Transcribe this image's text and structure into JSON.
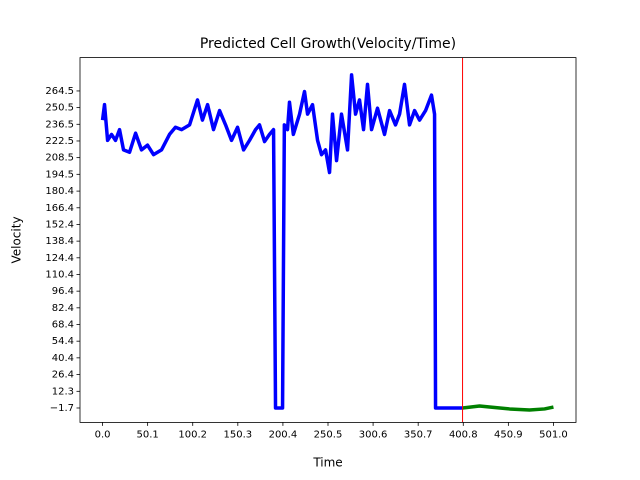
{
  "chart_data": {
    "type": "line",
    "title": "Predicted Cell Growth(Velocity/Time)",
    "xlabel": "Time",
    "ylabel": "Velocity",
    "xlim": [
      -25.05,
      526.05
    ],
    "ylim": [
      -13.8,
      292.5
    ],
    "xticks": [
      {
        "value": 0,
        "label": "0.0"
      },
      50.1,
      100.2,
      150.3,
      200.4,
      250.5,
      300.6,
      350.7,
      400.8,
      450.9,
      {
        "value": 501,
        "label": "501.0"
      }
    ],
    "yticks": [
      {
        "value": -1.7,
        "label": "−1.7"
      },
      12.3,
      26.4,
      40.4,
      54.4,
      68.4,
      82.4,
      96.4,
      110.4,
      124.4,
      138.4,
      152.4,
      166.4,
      180.4,
      194.5,
      208.5,
      222.5,
      236.5,
      250.5,
      264.5
    ],
    "vline": {
      "x": 400,
      "color": "#ff0000"
    },
    "series": [
      {
        "color": "#0000ff",
        "x": [
          0,
          2.2,
          5.6,
          10,
          14.4,
          18.9,
          23.3,
          30,
          36.7,
          43.3,
          50,
          56.7,
          65.5,
          74.4,
          81,
          87.8,
          96.7,
          105.5,
          111,
          116.7,
          123.3,
          130,
          136.7,
          143.3,
          150,
          156.7,
          163.3,
          170,
          174.4,
          180,
          185.5,
          190,
          192.2,
          200,
          202,
          205.5,
          207.7,
          212,
          218.9,
          224.4,
          227.8,
          233.3,
          238.9,
          243.3,
          247.8,
          252.2,
          255.5,
          260,
          265.5,
          272.2,
          276.7,
          281.1,
          285.5,
          290,
          294.4,
          298.9,
          305.5,
          313.3,
          318.9,
          325.5,
          330,
          335.5,
          341.1,
          346.7,
          352.2,
          358.9,
          365.5,
          368.9,
          370,
          400
        ],
        "values": [
          240,
          253,
          223,
          228,
          223,
          232,
          215,
          213,
          229,
          215,
          219,
          211,
          215,
          228,
          234,
          232,
          236,
          257,
          240,
          253,
          232,
          248,
          236,
          223,
          234,
          215,
          223,
          232,
          236,
          222,
          228,
          232,
          -1.7,
          -1.7,
          236,
          232,
          255,
          228,
          245,
          264,
          245,
          253,
          223,
          211,
          215,
          196,
          245,
          206,
          245,
          215,
          278,
          245,
          257,
          232,
          270,
          232,
          250,
          228,
          248,
          236,
          245,
          270,
          236,
          248,
          240,
          248,
          261,
          245,
          -1.7,
          -1.7
        ]
      },
      {
        "color": "#008000",
        "x": [
          400,
          418.9,
          430,
          452.2,
          474.4,
          491.1,
          501
        ],
        "values": [
          -1.7,
          0,
          -0.9,
          -2.5,
          -3.4,
          -2.5,
          -0.9
        ]
      }
    ]
  }
}
